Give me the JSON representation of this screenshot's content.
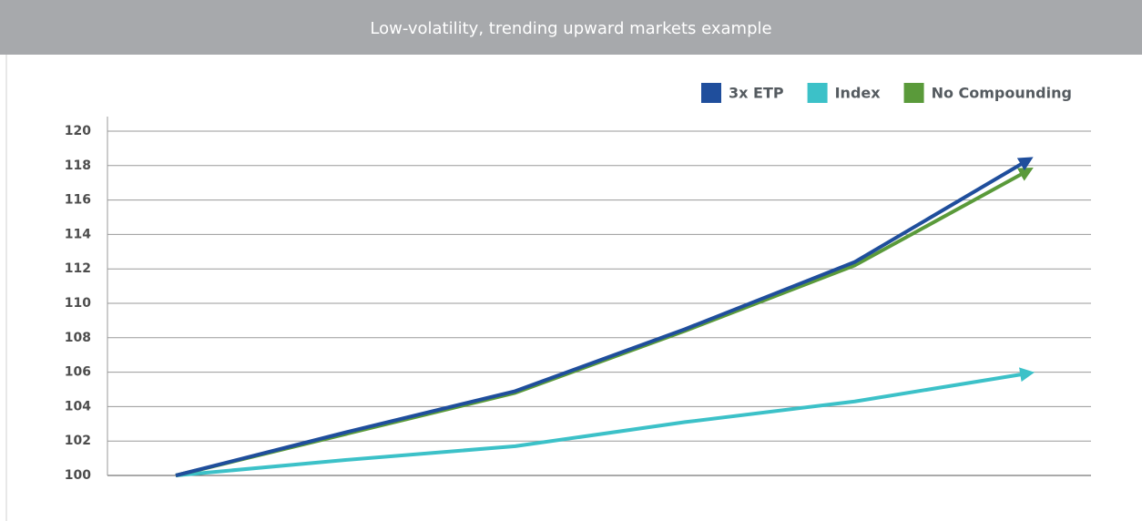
{
  "chart_data": {
    "type": "line",
    "title": "Low-volatility, trending upward markets example",
    "categories": [
      null,
      null,
      null,
      null,
      null,
      null
    ],
    "series": [
      {
        "name": "3x ETP",
        "color": "#1f4e9c",
        "values": [
          100,
          102.5,
          104.9,
          108.5,
          112.4,
          118.2
        ]
      },
      {
        "name": "Index",
        "color": "#3cc1c8",
        "values": [
          100,
          100.9,
          101.7,
          103.1,
          104.3,
          105.9
        ]
      },
      {
        "name": "No Compounding",
        "color": "#5a9a3a",
        "values": [
          100,
          102.4,
          104.8,
          108.4,
          112.2,
          117.6
        ]
      }
    ],
    "ylim": [
      100,
      120
    ],
    "yticks": [
      100,
      102,
      104,
      106,
      108,
      110,
      112,
      114,
      116,
      118,
      120
    ],
    "grid": true,
    "legend": "top-right"
  }
}
